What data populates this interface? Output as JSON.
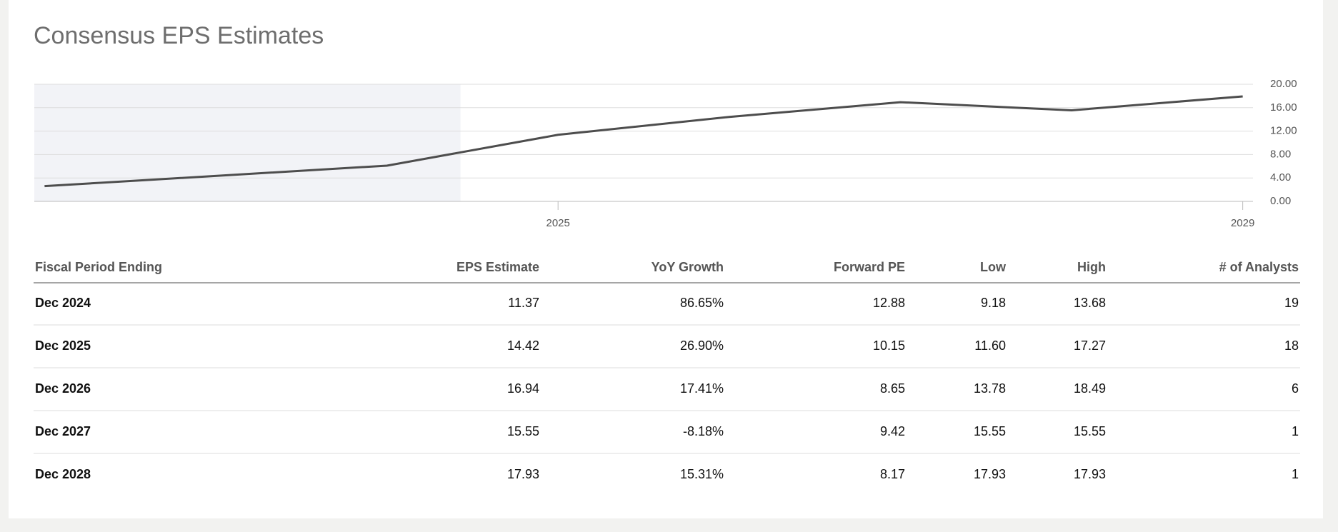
{
  "header": {
    "title": "Consensus EPS Estimates"
  },
  "chart_data": {
    "type": "line",
    "x": [
      2022,
      2024,
      2025,
      2026,
      2027,
      2028,
      2029
    ],
    "series": [
      {
        "name": "EPS",
        "color": "#4d4d4d",
        "values": [
          2.6,
          6.1,
          11.37,
          14.42,
          16.94,
          15.55,
          17.93
        ]
      }
    ],
    "xlim": [
      2021.94,
      2029.06
    ],
    "xticks": [
      2025,
      2029
    ],
    "ylim": [
      0,
      20
    ],
    "yticks": [
      {
        "value": 0,
        "label": "0.00"
      },
      {
        "value": 4,
        "label": "4.00"
      },
      {
        "value": 8,
        "label": "8.00"
      },
      {
        "value": 12,
        "label": "12.00"
      },
      {
        "value": 16,
        "label": "16.00"
      },
      {
        "value": 20,
        "label": "20.00"
      }
    ],
    "history_xlim": [
      2021.94,
      2024.43
    ],
    "grid": true
  },
  "table": {
    "columns": [
      "Fiscal Period Ending",
      "EPS Estimate",
      "YoY Growth",
      "Forward PE",
      "Low",
      "High",
      "# of Analysts"
    ],
    "rows": [
      [
        "Dec 2024",
        "11.37",
        "86.65%",
        "12.88",
        "9.18",
        "13.68",
        "19"
      ],
      [
        "Dec 2025",
        "14.42",
        "26.90%",
        "10.15",
        "11.60",
        "17.27",
        "18"
      ],
      [
        "Dec 2026",
        "16.94",
        "17.41%",
        "8.65",
        "13.78",
        "18.49",
        "6"
      ],
      [
        "Dec 2027",
        "15.55",
        "-8.18%",
        "9.42",
        "15.55",
        "15.55",
        "1"
      ],
      [
        "Dec 2028",
        "17.93",
        "15.31%",
        "8.17",
        "17.93",
        "17.93",
        "1"
      ]
    ]
  }
}
